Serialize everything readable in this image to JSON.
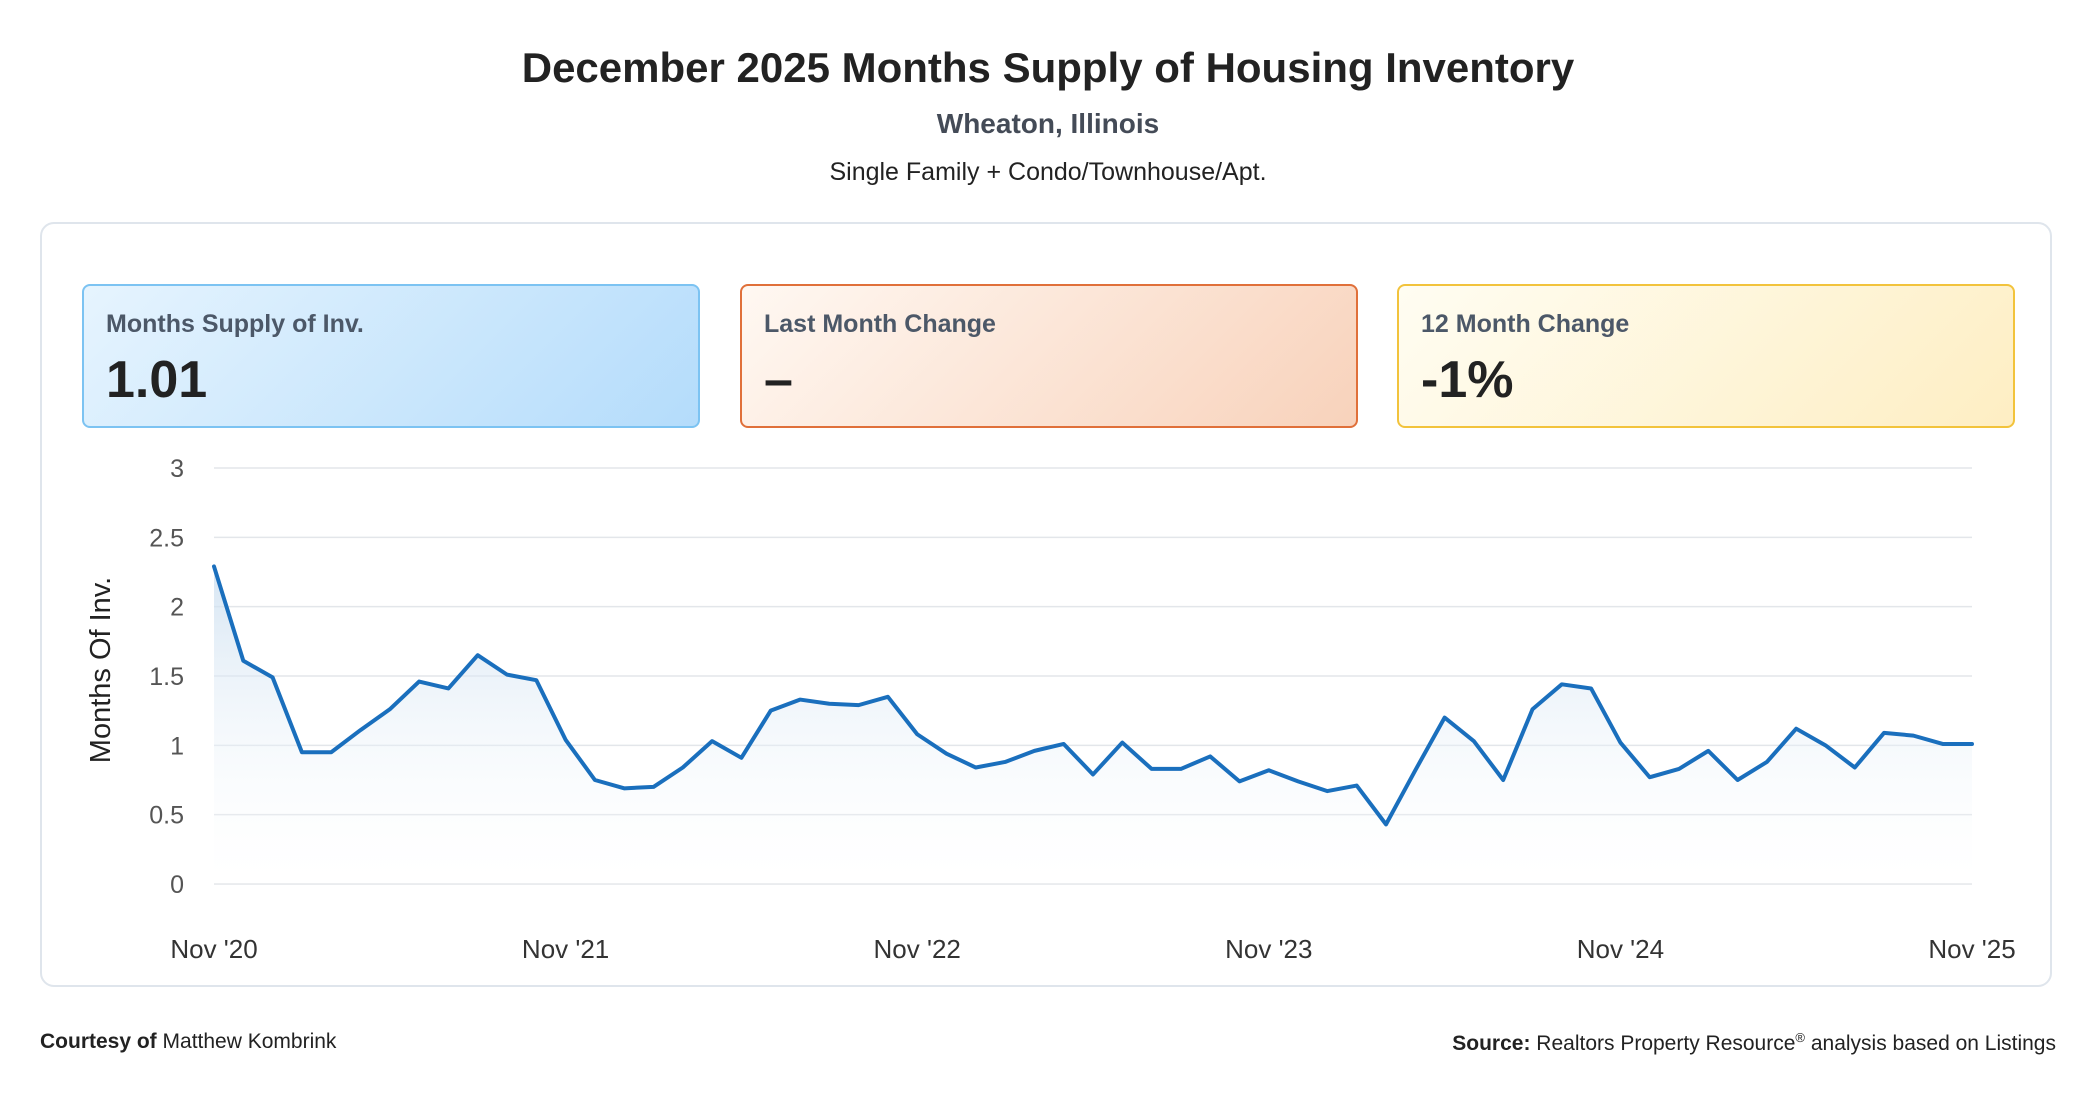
{
  "header": {
    "title": "December 2025 Months Supply of Housing Inventory",
    "location": "Wheaton, Illinois",
    "segment": "Single Family + Condo/Townhouse/Apt."
  },
  "cards": [
    {
      "label": "Months Supply of Inv.",
      "value": "1.01"
    },
    {
      "label": "Last Month Change",
      "value": "–"
    },
    {
      "label": "12 Month Change",
      "value": "-1%"
    }
  ],
  "footer": {
    "courtesy_label": "Courtesy of",
    "courtesy_name": "Matthew Kombrink",
    "source_label": "Source:",
    "source_text": "Realtors Property Resource",
    "source_mark": "®",
    "source_suffix": " analysis based on Listings"
  },
  "colors": {
    "line": "#1a6fbd",
    "area_top": "#c9ddef",
    "grid": "#e3e6ea"
  },
  "chart_data": {
    "type": "area",
    "ylabel": "Months Of Inv.",
    "xlabel": "",
    "ylim": [
      0,
      3
    ],
    "yticks": [
      "0",
      "0.5",
      "1",
      "1.5",
      "2",
      "2.5",
      "3"
    ],
    "xticks": [
      "Nov '20",
      "Nov '21",
      "Nov '22",
      "Nov '23",
      "Nov '24",
      "Nov '25"
    ],
    "grid": true,
    "series": [
      {
        "values": [
          2.29,
          1.61,
          1.49,
          0.95,
          0.95,
          1.11,
          1.26,
          1.46,
          1.41,
          1.65,
          1.51,
          1.47,
          1.04,
          0.75,
          0.69,
          0.7,
          0.84,
          1.03,
          0.91,
          1.25,
          1.33,
          1.3,
          1.29,
          1.35,
          1.08,
          0.94,
          0.84,
          0.88,
          0.96,
          1.01,
          0.79,
          1.02,
          0.83,
          0.83,
          0.92,
          0.74,
          0.82,
          0.74,
          0.67,
          0.71,
          0.43,
          0.82,
          1.2,
          1.03,
          0.75,
          1.26,
          1.44,
          1.41,
          1.02,
          0.77,
          0.83,
          0.96,
          0.75,
          0.88,
          1.12,
          1.0,
          0.84,
          1.09,
          1.07,
          1.01,
          1.01
        ]
      }
    ]
  }
}
